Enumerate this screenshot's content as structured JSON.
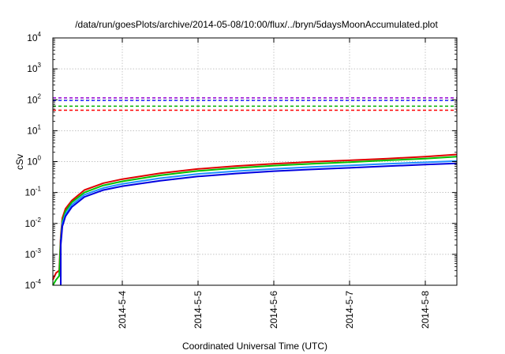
{
  "chart_data": {
    "type": "line",
    "title": "/data/run/goesPlots/archive/2014-05-08/10:00/flux/../bryn/5daysMoonAccumulated.plot",
    "xlabel": "Coordinated Universal Time (UTC)",
    "ylabel": "cSv",
    "y_scale": "log",
    "ylim": [
      0.0001,
      10000
    ],
    "xlim": [
      "2014-05-03T02:00",
      "2014-05-08T10:00"
    ],
    "grid": true,
    "x_tick_labels": [
      "2014-5-4",
      "2014-5-5",
      "2014-5-6",
      "2014-5-7",
      "2014-5-8"
    ],
    "y_tick_labels": [
      {
        "base": "10",
        "exp": "-4"
      },
      {
        "base": "10",
        "exp": "-3"
      },
      {
        "base": "10",
        "exp": "-2"
      },
      {
        "base": "10",
        "exp": "-1"
      },
      {
        "base": "10",
        "exp": "0"
      },
      {
        "base": "10",
        "exp": "1"
      },
      {
        "base": "10",
        "exp": "2"
      },
      {
        "base": "10",
        "exp": "3"
      },
      {
        "base": "10",
        "exp": "4"
      }
    ],
    "y_tick_values": [
      0.0001,
      0.001,
      0.01,
      0.1,
      1,
      10,
      100,
      1000,
      10000
    ],
    "x_tick_values": [
      "2014-05-04T00:00",
      "2014-05-05T00:00",
      "2014-05-06T00:00",
      "2014-05-07T00:00",
      "2014-05-08T00:00"
    ],
    "threshold_lines": [
      {
        "value": 115,
        "color": "#9400d3"
      },
      {
        "value": 95,
        "color": "#2020ff"
      },
      {
        "value": 62,
        "color": "#00b000"
      },
      {
        "value": 46,
        "color": "#ff0000"
      }
    ],
    "series": [
      {
        "color": "#e00000",
        "x": [
          "2014-05-03T02:00",
          "2014-05-03T03:00",
          "2014-05-03T04:00",
          "2014-05-03T04:30",
          "2014-05-03T05:00",
          "2014-05-03T06:00",
          "2014-05-03T08:00",
          "2014-05-03T12:00",
          "2014-05-03T18:00",
          "2014-05-04T00:00",
          "2014-05-04T12:00",
          "2014-05-05T00:00",
          "2014-05-05T12:00",
          "2014-05-06T00:00",
          "2014-05-06T12:00",
          "2014-05-07T00:00",
          "2014-05-07T12:00",
          "2014-05-08T00:00",
          "2014-05-08T10:00"
        ],
        "y": [
          0.00015,
          0.00025,
          0.0003,
          0.004,
          0.015,
          0.03,
          0.055,
          0.12,
          0.2,
          0.27,
          0.42,
          0.58,
          0.72,
          0.85,
          0.98,
          1.1,
          1.25,
          1.45,
          1.7
        ]
      },
      {
        "color": "#00c000",
        "x": [
          "2014-05-03T02:00",
          "2014-05-03T03:00",
          "2014-05-03T04:00",
          "2014-05-03T04:30",
          "2014-05-03T05:00",
          "2014-05-03T06:00",
          "2014-05-03T08:00",
          "2014-05-03T12:00",
          "2014-05-03T18:00",
          "2014-05-04T00:00",
          "2014-05-04T12:00",
          "2014-05-05T00:00",
          "2014-05-05T12:00",
          "2014-05-06T00:00",
          "2014-05-06T12:00",
          "2014-05-07T00:00",
          "2014-05-07T12:00",
          "2014-05-08T00:00",
          "2014-05-08T10:00"
        ],
        "y": [
          0.0001,
          0.00015,
          0.0002,
          0.003,
          0.012,
          0.025,
          0.048,
          0.1,
          0.17,
          0.23,
          0.36,
          0.5,
          0.62,
          0.74,
          0.85,
          0.96,
          1.1,
          1.25,
          1.45
        ]
      },
      {
        "color": "#1e90ff",
        "x": [
          "2014-05-03T04:30",
          "2014-05-03T05:00",
          "2014-05-03T06:00",
          "2014-05-03T08:00",
          "2014-05-03T12:00",
          "2014-05-03T18:00",
          "2014-05-04T00:00",
          "2014-05-04T12:00",
          "2014-05-05T00:00",
          "2014-05-05T12:00",
          "2014-05-06T00:00",
          "2014-05-06T12:00",
          "2014-05-07T00:00",
          "2014-05-07T12:00",
          "2014-05-08T00:00",
          "2014-05-08T10:00"
        ],
        "y": [
          0.0025,
          0.01,
          0.02,
          0.04,
          0.085,
          0.14,
          0.19,
          0.29,
          0.4,
          0.49,
          0.58,
          0.67,
          0.75,
          0.85,
          0.95,
          1.05
        ]
      },
      {
        "color": "#0000e0",
        "x": [
          "2014-05-03T04:30",
          "2014-05-03T05:00",
          "2014-05-03T06:00",
          "2014-05-03T08:00",
          "2014-05-03T12:00",
          "2014-05-03T18:00",
          "2014-05-04T00:00",
          "2014-05-04T12:00",
          "2014-05-05T00:00",
          "2014-05-05T12:00",
          "2014-05-06T00:00",
          "2014-05-06T12:00",
          "2014-05-07T00:00",
          "2014-05-07T12:00",
          "2014-05-08T00:00",
          "2014-05-08T10:00"
        ],
        "y": [
          0.002,
          0.008,
          0.017,
          0.034,
          0.072,
          0.12,
          0.16,
          0.24,
          0.33,
          0.41,
          0.49,
          0.56,
          0.63,
          0.71,
          0.8,
          0.88
        ]
      }
    ]
  }
}
